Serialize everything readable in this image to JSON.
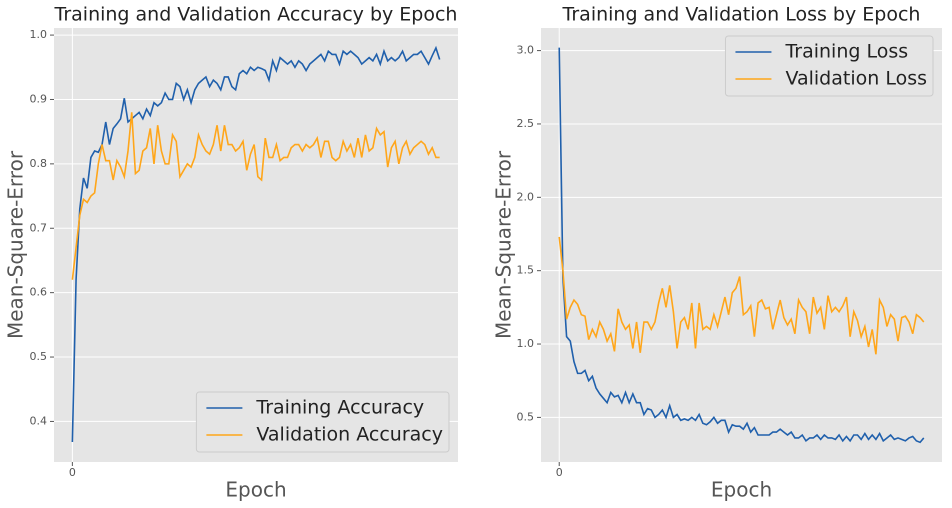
{
  "chart_data": [
    {
      "type": "line",
      "title": "Training and Validation Accuracy by Epoch",
      "xlabel": "Epoch",
      "ylabel": "Mean-Square-Error",
      "x": [
        0,
        1,
        2,
        3,
        4,
        5,
        6,
        7,
        8,
        9,
        10,
        11,
        12,
        13,
        14,
        15,
        16,
        17,
        18,
        19,
        20,
        21,
        22,
        23,
        24,
        25,
        26,
        27,
        28,
        29,
        30,
        31,
        32,
        33,
        34,
        35,
        36,
        37,
        38,
        39,
        40,
        41,
        42,
        43,
        44,
        45,
        46,
        47,
        48,
        49,
        50,
        51,
        52,
        53,
        54,
        55,
        56,
        57,
        58,
        59,
        60,
        61,
        62,
        63,
        64,
        65,
        66,
        67,
        68,
        69,
        70,
        71,
        72,
        73,
        74,
        75,
        76,
        77,
        78,
        79,
        80,
        81,
        82,
        83,
        84,
        85,
        86,
        87,
        88,
        89,
        90,
        91,
        92,
        93,
        94,
        95,
        96,
        97,
        98,
        99
      ],
      "xlim": [
        -4.95,
        103.95
      ],
      "xticks": [
        0
      ],
      "ylim": [
        0.337,
        1.011
      ],
      "yticks": [
        0.4,
        0.5,
        0.6,
        0.7,
        0.8,
        0.9,
        {
          "value": 1,
          "label": "1.0"
        }
      ],
      "grid": true,
      "legend": "lower right",
      "series": [
        {
          "name": "Training Accuracy",
          "color": "#2060ac",
          "values": [
            0.368,
            0.62,
            0.73,
            0.778,
            0.762,
            0.81,
            0.82,
            0.818,
            0.83,
            0.865,
            0.83,
            0.855,
            0.862,
            0.87,
            0.902,
            0.865,
            0.87,
            0.875,
            0.88,
            0.87,
            0.885,
            0.875,
            0.895,
            0.89,
            0.895,
            0.91,
            0.9,
            0.9,
            0.925,
            0.92,
            0.9,
            0.915,
            0.895,
            0.915,
            0.925,
            0.93,
            0.935,
            0.92,
            0.93,
            0.925,
            0.915,
            0.935,
            0.935,
            0.92,
            0.915,
            0.94,
            0.945,
            0.94,
            0.95,
            0.945,
            0.95,
            0.948,
            0.945,
            0.93,
            0.96,
            0.945,
            0.965,
            0.96,
            0.955,
            0.96,
            0.95,
            0.96,
            0.955,
            0.945,
            0.955,
            0.96,
            0.965,
            0.97,
            0.96,
            0.975,
            0.97,
            0.97,
            0.955,
            0.975,
            0.97,
            0.975,
            0.97,
            0.965,
            0.955,
            0.96,
            0.965,
            0.96,
            0.97,
            0.955,
            0.975,
            0.96,
            0.965,
            0.96,
            0.965,
            0.975,
            0.96,
            0.965,
            0.97,
            0.97,
            0.975,
            0.965,
            0.955,
            0.968,
            0.98,
            0.962
          ]
        },
        {
          "name": "Validation Accuracy",
          "color": "#ffa61a",
          "values": [
            0.62,
            0.67,
            0.72,
            0.745,
            0.74,
            0.75,
            0.755,
            0.8,
            0.83,
            0.805,
            0.805,
            0.775,
            0.805,
            0.795,
            0.78,
            0.82,
            0.88,
            0.785,
            0.79,
            0.82,
            0.825,
            0.855,
            0.8,
            0.86,
            0.82,
            0.8,
            0.8,
            0.845,
            0.835,
            0.78,
            0.79,
            0.8,
            0.795,
            0.81,
            0.845,
            0.83,
            0.82,
            0.815,
            0.83,
            0.86,
            0.82,
            0.86,
            0.83,
            0.83,
            0.82,
            0.825,
            0.835,
            0.79,
            0.815,
            0.83,
            0.78,
            0.775,
            0.84,
            0.81,
            0.81,
            0.83,
            0.805,
            0.81,
            0.81,
            0.825,
            0.83,
            0.83,
            0.82,
            0.83,
            0.825,
            0.83,
            0.84,
            0.81,
            0.835,
            0.835,
            0.81,
            0.805,
            0.81,
            0.835,
            0.82,
            0.83,
            0.81,
            0.84,
            0.81,
            0.845,
            0.82,
            0.825,
            0.855,
            0.845,
            0.85,
            0.795,
            0.825,
            0.835,
            0.8,
            0.825,
            0.835,
            0.815,
            0.825,
            0.83,
            0.835,
            0.83,
            0.815,
            0.825,
            0.81,
            0.81
          ]
        }
      ]
    },
    {
      "type": "line",
      "title": "Training and Validation Loss by Epoch",
      "xlabel": "Epoch",
      "ylabel": "Mean-Square-Error",
      "x": [
        0,
        1,
        2,
        3,
        4,
        5,
        6,
        7,
        8,
        9,
        10,
        11,
        12,
        13,
        14,
        15,
        16,
        17,
        18,
        19,
        20,
        21,
        22,
        23,
        24,
        25,
        26,
        27,
        28,
        29,
        30,
        31,
        32,
        33,
        34,
        35,
        36,
        37,
        38,
        39,
        40,
        41,
        42,
        43,
        44,
        45,
        46,
        47,
        48,
        49,
        50,
        51,
        52,
        53,
        54,
        55,
        56,
        57,
        58,
        59,
        60,
        61,
        62,
        63,
        64,
        65,
        66,
        67,
        68,
        69,
        70,
        71,
        72,
        73,
        74,
        75,
        76,
        77,
        78,
        79,
        80,
        81,
        82,
        83,
        84,
        85,
        86,
        87,
        88,
        89,
        90,
        91,
        92,
        93,
        94,
        95,
        96,
        97,
        98,
        99
      ],
      "xlim": [
        -4.95,
        103.95
      ],
      "xticks": [
        0
      ],
      "ylim": [
        0.196,
        3.154
      ],
      "yticks": [
        0.5,
        {
          "value": 1,
          "label": "1.0"
        },
        1.5,
        {
          "value": 2,
          "label": "2.0"
        },
        2.5,
        {
          "value": 3,
          "label": "3.0"
        }
      ],
      "grid": true,
      "legend": "upper right",
      "series": [
        {
          "name": "Training Loss",
          "color": "#2060ac",
          "values": [
            3.02,
            1.45,
            1.05,
            1.02,
            0.88,
            0.8,
            0.8,
            0.82,
            0.75,
            0.78,
            0.7,
            0.66,
            0.63,
            0.6,
            0.67,
            0.64,
            0.65,
            0.6,
            0.67,
            0.6,
            0.66,
            0.6,
            0.6,
            0.52,
            0.56,
            0.55,
            0.5,
            0.52,
            0.55,
            0.5,
            0.58,
            0.5,
            0.52,
            0.48,
            0.49,
            0.48,
            0.5,
            0.48,
            0.52,
            0.46,
            0.45,
            0.47,
            0.5,
            0.46,
            0.48,
            0.48,
            0.4,
            0.45,
            0.44,
            0.44,
            0.42,
            0.46,
            0.4,
            0.43,
            0.38,
            0.38,
            0.38,
            0.38,
            0.4,
            0.4,
            0.42,
            0.4,
            0.38,
            0.4,
            0.36,
            0.36,
            0.38,
            0.34,
            0.36,
            0.36,
            0.38,
            0.35,
            0.38,
            0.36,
            0.36,
            0.35,
            0.38,
            0.34,
            0.37,
            0.34,
            0.38,
            0.38,
            0.35,
            0.39,
            0.35,
            0.38,
            0.35,
            0.39,
            0.34,
            0.36,
            0.38,
            0.35,
            0.36,
            0.35,
            0.34,
            0.36,
            0.37,
            0.34,
            0.33,
            0.36
          ]
        },
        {
          "name": "Validation Loss",
          "color": "#ffa61a",
          "values": [
            1.73,
            1.5,
            1.17,
            1.25,
            1.3,
            1.27,
            1.2,
            1.19,
            1.03,
            1.1,
            1.05,
            1.15,
            1.1,
            1.02,
            1.07,
            0.95,
            1.24,
            1.15,
            1.1,
            1.13,
            0.97,
            1.15,
            0.94,
            1.15,
            1.15,
            1.1,
            1.15,
            1.28,
            1.38,
            1.25,
            1.4,
            1.22,
            0.97,
            1.15,
            1.18,
            1.1,
            1.28,
            0.97,
            1.28,
            1.1,
            1.12,
            1.1,
            1.2,
            1.12,
            1.22,
            1.32,
            1.2,
            1.35,
            1.38,
            1.46,
            1.2,
            1.22,
            1.26,
            1.05,
            1.28,
            1.3,
            1.24,
            1.25,
            1.1,
            1.2,
            1.3,
            1.18,
            1.13,
            1.17,
            1.07,
            1.3,
            1.25,
            1.22,
            1.07,
            1.32,
            1.21,
            1.25,
            1.1,
            1.33,
            1.22,
            1.25,
            1.22,
            1.26,
            1.32,
            1.05,
            1.22,
            1.16,
            1.05,
            1.12,
            0.98,
            1.1,
            0.93,
            1.3,
            1.25,
            1.12,
            1.2,
            1.17,
            1.02,
            1.18,
            1.19,
            1.15,
            1.07,
            1.2,
            1.18,
            1.15
          ]
        }
      ]
    }
  ]
}
